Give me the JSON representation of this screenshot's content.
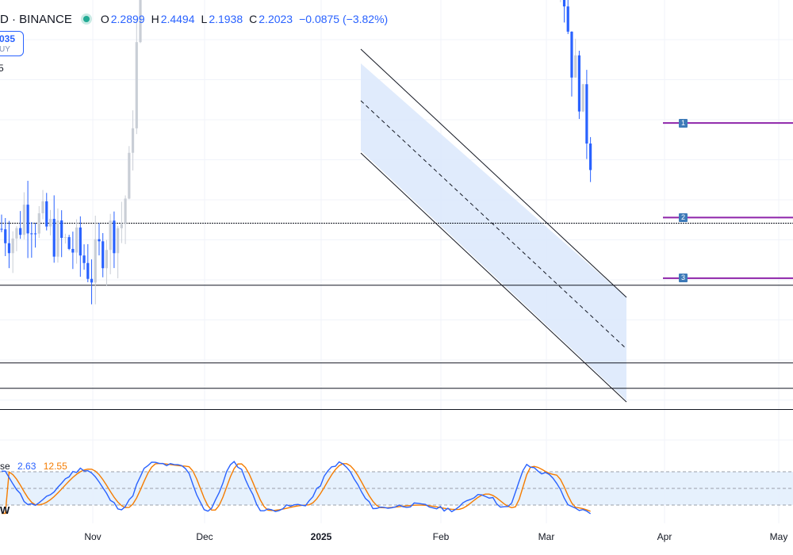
{
  "header": {
    "symbol": "D · BINANCE",
    "open_label": "O",
    "open": "2.2899",
    "high_label": "H",
    "high": "2.4494",
    "low_label": "L",
    "low": "2.1938",
    "close_label": "C",
    "close": "2.2023",
    "change": "−0.0875 (−3.82%)"
  },
  "price_box": {
    "price": "035",
    "side": "UY"
  },
  "minor_label": "5",
  "indicator": {
    "name_fragment": "se",
    "k_value": "2.63",
    "d_value": "12.55",
    "side_tag": "W"
  },
  "colors": {
    "up": "#c9ced6",
    "down": "#2962ff",
    "k_line": "#2962ff",
    "d_line": "#f57c00",
    "channel_fill": "#dbe8fb",
    "marker_line": "#8e24aa",
    "marker_box": "#3d7ab8"
  },
  "chart_data": {
    "type": "candlestick",
    "x_axis": {
      "ticks": [
        {
          "label": "Nov",
          "bold": false
        },
        {
          "label": "Dec",
          "bold": false
        },
        {
          "label": "2025",
          "bold": true
        },
        {
          "label": "Feb",
          "bold": false
        },
        {
          "label": "Mar",
          "bold": false
        },
        {
          "label": "Apr",
          "bold": false
        },
        {
          "label": "May",
          "bold": false
        }
      ]
    },
    "candles_trend": [
      {
        "t": 0,
        "v": 3.0
      },
      {
        "t": 4,
        "v": 2.95
      },
      {
        "t": 6,
        "v": 3.15
      },
      {
        "t": 10,
        "v": 3.05
      },
      {
        "t": 16,
        "v": 2.9
      },
      {
        "t": 20,
        "v": 2.85
      },
      {
        "t": 24,
        "v": 2.7
      },
      {
        "t": 28,
        "v": 2.95
      },
      {
        "t": 32,
        "v": 3.05
      },
      {
        "t": 34,
        "v": 3.4
      },
      {
        "t": 37,
        "v": 4.7
      },
      {
        "t": 40,
        "v": 5.9
      },
      {
        "t": 43,
        "v": 6.4
      },
      {
        "t": 47,
        "v": 5.7
      },
      {
        "t": 51,
        "v": 5.6
      },
      {
        "t": 53,
        "v": 5.8
      },
      {
        "t": 56,
        "v": 6.9
      },
      {
        "t": 59,
        "v": 7.4
      },
      {
        "t": 62,
        "v": 6.5
      },
      {
        "t": 65,
        "v": 7.8
      },
      {
        "t": 68,
        "v": 8.1
      },
      {
        "t": 72,
        "v": 7.5
      },
      {
        "t": 76,
        "v": 7.6
      },
      {
        "t": 80,
        "v": 7.3
      },
      {
        "t": 84,
        "v": 7.0
      },
      {
        "t": 88,
        "v": 7.2
      },
      {
        "t": 91,
        "v": 8.6
      },
      {
        "t": 93,
        "v": 8.9
      },
      {
        "t": 96,
        "v": 8.5
      },
      {
        "t": 100,
        "v": 8.2
      },
      {
        "t": 104,
        "v": 8.4
      },
      {
        "t": 107,
        "v": 7.9
      },
      {
        "t": 110,
        "v": 7.6
      },
      {
        "t": 114,
        "v": 7.0
      },
      {
        "t": 118,
        "v": 6.7
      },
      {
        "t": 121,
        "v": 6.3
      },
      {
        "t": 124,
        "v": 6.6
      },
      {
        "t": 128,
        "v": 5.8
      },
      {
        "t": 132,
        "v": 5.5
      },
      {
        "t": 135,
        "v": 5.6
      },
      {
        "t": 139,
        "v": 5.7
      },
      {
        "t": 143,
        "v": 5.3
      },
      {
        "t": 147,
        "v": 5.0
      },
      {
        "t": 149,
        "v": 4.9
      },
      {
        "t": 152,
        "v": 4.2
      },
      {
        "t": 154,
        "v": 4.0
      },
      {
        "t": 157,
        "v": 3.55
      }
    ],
    "price_levels": [
      3.04,
      2.6,
      2.05,
      1.87,
      1.72
    ],
    "markers": [
      {
        "label": "1",
        "value": 3.75
      },
      {
        "label": "2",
        "value": 3.08
      },
      {
        "label": "3",
        "value": 2.65
      }
    ],
    "stochastic": {
      "k_label": "2.63",
      "d_label": "12.55",
      "upper_band": 80,
      "mid_band": 50,
      "lower_band": 20
    }
  }
}
